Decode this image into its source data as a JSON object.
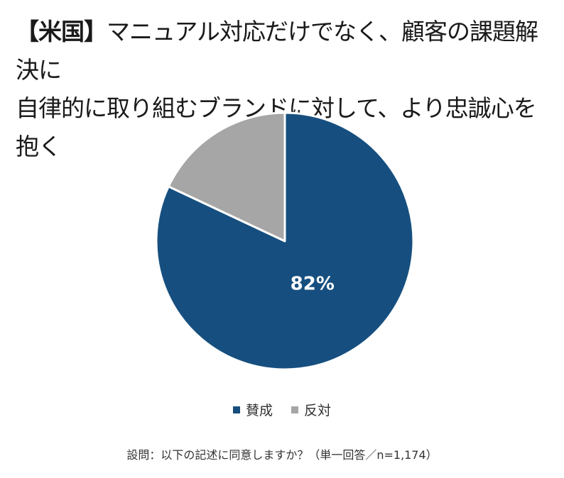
{
  "title": {
    "prefix": "【米国】",
    "line1": "マニュアル対応だけでなく、顧客の課題解決に",
    "line2": "自律的に取り組むブランドに対して、より忠誠心を抱く"
  },
  "chart_data": {
    "type": "pie",
    "slices": [
      {
        "name": "賛成",
        "value": 82,
        "label": "82%",
        "color": "#164f7f"
      },
      {
        "name": "反対",
        "value": 18,
        "label": "",
        "color": "#a6a6a6"
      }
    ],
    "start_angle_deg": 0,
    "direction": "clockwise",
    "legend": "bottom"
  },
  "legend": [
    {
      "label": "賛成",
      "color": "#164f7f"
    },
    {
      "label": "反対",
      "color": "#a6a6a6"
    }
  ],
  "footnote": "設問：以下の記述に同意しますか？（単一回答／n=1,174）"
}
